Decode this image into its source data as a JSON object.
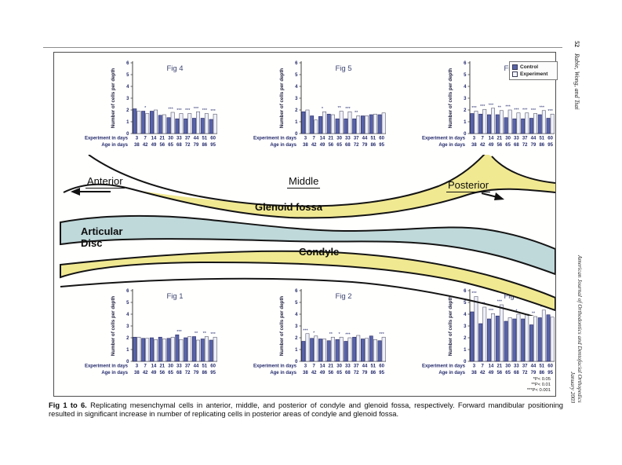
{
  "page": {
    "margin_right_top": {
      "page_number": "52",
      "authors": "Rabie, Wong, and Tsai"
    },
    "margin_right_bottom": {
      "journal": "American Journal of Orthodontics and Dentofacial Orthopedics",
      "issue": "January 2003"
    },
    "caption": {
      "label": "Fig 1 to 6.",
      "text": "Replicating mesenchymal cells in anterior, middle, and posterior of condyle and glenoid fossa, respectively. Forward mandibular positioning resulted in significant increase in number of replicating cells in posterior areas of condyle and glenoid fossa."
    }
  },
  "figure": {
    "legend": {
      "items": [
        {
          "label": "Control",
          "swatch": "filled-navy-square"
        },
        {
          "label": "Experiment",
          "swatch": "open-square"
        }
      ]
    },
    "significance_note": [
      "*P< 0.05",
      "**P< 0.01",
      "***P< 0.001"
    ],
    "diagram": {
      "labels": {
        "anterior": "Anterior",
        "middle": "Middle",
        "posterior": "Posterior",
        "glenoid_fossa": "Glenoid fossa",
        "articular_disc": "Articular Disc",
        "condyle": "Condyle"
      },
      "colors": {
        "bone_band": "#f1e992",
        "disc": "#bfd8da",
        "outline": "#141414"
      }
    },
    "colors": {
      "control_bar": "#5763aa",
      "control_border": "#2c2c66",
      "experiment_bar": "#eef0f9",
      "experiment_border": "#5a5a6e",
      "chart_text": "#23296a",
      "title_text": "#3c4470"
    }
  },
  "chart_data": [
    {
      "id": "fig4",
      "title": "Fig 4",
      "type": "bar",
      "ylabel": "Number of cells per depth",
      "ylim": [
        0,
        6
      ],
      "yticks": [
        0,
        1,
        2,
        3,
        4,
        5,
        6
      ],
      "x_row_labels": [
        "Experiment in days",
        "Age in days"
      ],
      "experiment_days": [
        "3",
        "7",
        "14",
        "21",
        "30",
        "33",
        "37",
        "44",
        "51",
        "60"
      ],
      "age_days": [
        "38",
        "42",
        "49",
        "56",
        "65",
        "68",
        "72",
        "79",
        "86",
        "95"
      ],
      "series": [
        {
          "name": "Control",
          "values": [
            2.1,
            1.9,
            1.9,
            1.55,
            1.35,
            1.25,
            1.25,
            1.3,
            1.3,
            1.2
          ]
        },
        {
          "name": "Experiment",
          "values": [
            1.9,
            1.7,
            2.0,
            1.6,
            1.8,
            1.7,
            1.7,
            1.85,
            1.7,
            1.65
          ]
        }
      ],
      "significance": [
        "",
        "*",
        "",
        "",
        "***",
        "***",
        "***",
        "***",
        "***",
        "***"
      ]
    },
    {
      "id": "fig5",
      "title": "Fig 5",
      "type": "bar",
      "ylabel": "Number of cells per depth",
      "ylim": [
        0,
        6
      ],
      "yticks": [
        0,
        1,
        2,
        3,
        4,
        5,
        6
      ],
      "x_row_labels": [
        "Experiment in days",
        "Age in days"
      ],
      "experiment_days": [
        "3",
        "7",
        "14",
        "21",
        "30",
        "33",
        "37",
        "44",
        "51",
        "60"
      ],
      "age_days": [
        "38",
        "42",
        "49",
        "56",
        "65",
        "68",
        "72",
        "79",
        "86",
        "95"
      ],
      "series": [
        {
          "name": "Control",
          "values": [
            1.85,
            1.5,
            1.45,
            1.65,
            1.25,
            1.25,
            1.25,
            1.5,
            1.6,
            1.6
          ]
        },
        {
          "name": "Experiment",
          "values": [
            2.0,
            1.15,
            1.85,
            1.6,
            1.9,
            1.85,
            1.5,
            1.5,
            1.65,
            1.75
          ]
        }
      ],
      "significance": [
        "",
        "",
        "*",
        "",
        "**",
        "***",
        "**",
        "",
        "",
        ""
      ]
    },
    {
      "id": "fig6",
      "title": "Fig 6",
      "type": "bar",
      "ylabel": "Number of cells per depth",
      "ylim": [
        0,
        6
      ],
      "yticks": [
        0,
        1,
        2,
        3,
        4,
        5,
        6
      ],
      "x_row_labels": [
        "Experiment in days",
        "Age in days"
      ],
      "experiment_days": [
        "3",
        "7",
        "14",
        "21",
        "30",
        "33",
        "37",
        "44",
        "51",
        "60"
      ],
      "age_days": [
        "38",
        "42",
        "49",
        "56",
        "65",
        "68",
        "72",
        "79",
        "86",
        "95"
      ],
      "series": [
        {
          "name": "Control",
          "values": [
            1.7,
            1.65,
            1.6,
            1.6,
            1.35,
            1.25,
            1.25,
            1.3,
            1.6,
            1.3
          ]
        },
        {
          "name": "Experiment",
          "values": [
            1.9,
            2.05,
            2.15,
            1.95,
            2.0,
            1.75,
            1.75,
            1.7,
            1.95,
            1.65
          ]
        }
      ],
      "significance": [
        "***",
        "***",
        "***",
        "**",
        "***",
        "***",
        "***",
        "***",
        "***",
        "***"
      ]
    },
    {
      "id": "fig1",
      "title": "Fig 1",
      "type": "bar",
      "ylabel": "Number of cells per depth",
      "ylim": [
        0,
        6
      ],
      "yticks": [
        0,
        1,
        2,
        3,
        4,
        5,
        6
      ],
      "x_row_labels": [
        "Experiment in days",
        "Age in days"
      ],
      "experiment_days": [
        "3",
        "7",
        "14",
        "21",
        "30",
        "33",
        "37",
        "44",
        "51",
        "60"
      ],
      "age_days": [
        "38",
        "42",
        "49",
        "56",
        "65",
        "68",
        "72",
        "79",
        "86",
        "95"
      ],
      "series": [
        {
          "name": "Control",
          "values": [
            2.05,
            1.95,
            2.0,
            2.05,
            1.95,
            2.25,
            2.0,
            2.1,
            1.9,
            1.8
          ]
        },
        {
          "name": "Experiment",
          "values": [
            2.05,
            1.95,
            1.85,
            1.9,
            2.05,
            1.85,
            2.1,
            1.8,
            2.1,
            2.05
          ]
        }
      ],
      "significance": [
        "",
        "",
        "",
        "",
        "",
        "***",
        "",
        "**",
        "**",
        "***"
      ]
    },
    {
      "id": "fig2",
      "title": "Fig 2",
      "type": "bar",
      "ylabel": "Number of cells per depth",
      "ylim": [
        0,
        6
      ],
      "yticks": [
        0,
        1,
        2,
        3,
        4,
        5,
        6
      ],
      "x_row_labels": [
        "Experiment in days",
        "Age in days"
      ],
      "experiment_days": [
        "3",
        "7",
        "14",
        "21",
        "30",
        "33",
        "37",
        "44",
        "51",
        "60"
      ],
      "age_days": [
        "38",
        "42",
        "49",
        "56",
        "65",
        "68",
        "72",
        "79",
        "86",
        "95"
      ],
      "series": [
        {
          "name": "Control",
          "values": [
            1.7,
            1.95,
            1.9,
            1.75,
            1.85,
            1.7,
            2.05,
            1.9,
            2.15,
            1.75
          ]
        },
        {
          "name": "Experiment",
          "values": [
            2.35,
            2.15,
            1.9,
            2.05,
            2.05,
            2.0,
            2.2,
            1.95,
            1.85,
            2.05
          ]
        }
      ],
      "significance": [
        "***",
        "*",
        "",
        "**",
        "*",
        "***",
        "",
        "",
        "",
        "***"
      ]
    },
    {
      "id": "fig3",
      "title": "Fig 3",
      "type": "bar",
      "ylabel": "Number of cells per depth",
      "ylim": [
        0,
        6
      ],
      "yticks": [
        0,
        1,
        2,
        3,
        4,
        5,
        6
      ],
      "x_row_labels": [
        "Experiment in days",
        "Age in days"
      ],
      "experiment_days": [
        "3",
        "7",
        "14",
        "21",
        "30",
        "33",
        "37",
        "44",
        "51",
        "60"
      ],
      "age_days": [
        "38",
        "42",
        "49",
        "56",
        "65",
        "68",
        "72",
        "79",
        "86",
        "95"
      ],
      "series": [
        {
          "name": "Control",
          "values": [
            4.2,
            3.2,
            3.6,
            3.85,
            3.4,
            3.6,
            3.6,
            3.1,
            3.7,
            3.95
          ]
        },
        {
          "name": "Experiment",
          "values": [
            5.5,
            4.6,
            4.05,
            4.8,
            3.7,
            4.0,
            4.0,
            3.8,
            4.35,
            3.75
          ]
        }
      ],
      "significance": [
        "***",
        "***",
        "***",
        "***",
        "",
        "*",
        "",
        "**",
        "**",
        ""
      ]
    }
  ]
}
